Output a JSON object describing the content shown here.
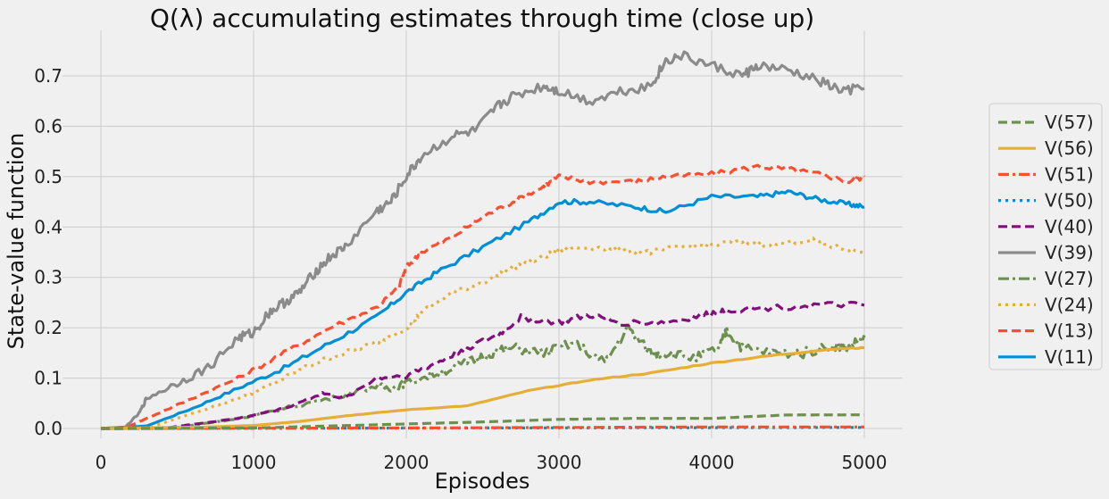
{
  "chart_data": {
    "type": "line",
    "title": "Q(λ) accumulating estimates through time (close up)",
    "xlabel": "Episodes",
    "ylabel": "State-value function",
    "xlim": [
      -250,
      5250
    ],
    "ylim": [
      -0.02,
      0.79
    ],
    "xticks": [
      0,
      1000,
      2000,
      3000,
      4000,
      5000
    ],
    "xtick_labels": [
      "0",
      "1000",
      "2000",
      "3000",
      "4000",
      "5000"
    ],
    "yticks": [
      0.0,
      0.1,
      0.2,
      0.3,
      0.4,
      0.5,
      0.6,
      0.7
    ],
    "ytick_labels": [
      "0.0",
      "0.1",
      "0.2",
      "0.3",
      "0.4",
      "0.5",
      "0.6",
      "0.7"
    ],
    "grid": true,
    "legend_position": "right",
    "series": [
      {
        "name": "V(57)",
        "label": "V(57)",
        "color": "#6d904f",
        "style": "dashed",
        "x": [
          0,
          1000,
          1500,
          2000,
          2500,
          3000,
          3500,
          4000,
          4500,
          5000
        ],
        "y": [
          0.0,
          0.001,
          0.005,
          0.009,
          0.013,
          0.018,
          0.02,
          0.02,
          0.027,
          0.027
        ]
      },
      {
        "name": "V(56)",
        "label": "V(56)",
        "color": "#e5ae38",
        "style": "solid",
        "x": [
          0,
          700,
          1000,
          1300,
          1600,
          2000,
          2400,
          2800,
          3200,
          3600,
          4000,
          4400,
          4800,
          5000
        ],
        "y": [
          0.0,
          0.003,
          0.006,
          0.014,
          0.025,
          0.037,
          0.045,
          0.075,
          0.096,
          0.11,
          0.13,
          0.145,
          0.158,
          0.16
        ]
      },
      {
        "name": "V(51)",
        "label": "V(51)",
        "color": "#fc4f30",
        "style": "dashdot",
        "x": [
          0,
          2000,
          3000,
          4000,
          5000
        ],
        "y": [
          0.0,
          0.001,
          0.002,
          0.003,
          0.003
        ]
      },
      {
        "name": "V(50)",
        "label": "V(50)",
        "color": "#008fd5",
        "style": "dotted",
        "x": [
          0,
          2500,
          5000
        ],
        "y": [
          0.0,
          0.001,
          0.002
        ]
      },
      {
        "name": "V(40)",
        "label": "V(40)",
        "color": "#810f7c",
        "style": "dashed",
        "x": [
          0,
          400,
          600,
          900,
          1200,
          1450,
          1600,
          1800,
          2000,
          2200,
          2400,
          2600,
          2750,
          3000,
          3200,
          3400,
          3700,
          3950,
          4100,
          4400,
          4700,
          5000
        ],
        "y": [
          0.0,
          0.0,
          0.008,
          0.02,
          0.04,
          0.07,
          0.06,
          0.1,
          0.105,
          0.13,
          0.16,
          0.185,
          0.22,
          0.21,
          0.225,
          0.21,
          0.21,
          0.225,
          0.235,
          0.24,
          0.245,
          0.245
        ]
      },
      {
        "name": "V(39)",
        "label": "V(39)",
        "color": "#8b8b8b",
        "style": "solid",
        "x": [
          0,
          150,
          250,
          300,
          500,
          700,
          900,
          1000,
          1100,
          1200,
          1300,
          1400,
          1500,
          1600,
          1800,
          1900,
          2000,
          2100,
          2300,
          2450,
          2600,
          2700,
          2900,
          3000,
          3200,
          3400,
          3600,
          3700,
          3800,
          4000,
          4200,
          4300,
          4500,
          4700,
          4850,
          5000
        ],
        "y": [
          0.0,
          0.0,
          0.03,
          0.06,
          0.09,
          0.12,
          0.18,
          0.19,
          0.23,
          0.25,
          0.27,
          0.31,
          0.34,
          0.36,
          0.43,
          0.45,
          0.5,
          0.54,
          0.58,
          0.59,
          0.64,
          0.66,
          0.68,
          0.67,
          0.65,
          0.67,
          0.68,
          0.73,
          0.74,
          0.72,
          0.7,
          0.72,
          0.71,
          0.69,
          0.67,
          0.675
        ]
      },
      {
        "name": "V(27)",
        "label": "V(27)",
        "color": "#6d904f",
        "style": "dashdot",
        "x": [
          0,
          500,
          800,
          1000,
          1200,
          1500,
          1800,
          1900,
          2000,
          2200,
          2400,
          2550,
          2700,
          2900,
          3100,
          3300,
          3450,
          3600,
          3700,
          3900,
          4050,
          4100,
          4200,
          4400,
          4600,
          4800,
          4900,
          5000
        ],
        "y": [
          0.0,
          0.002,
          0.015,
          0.025,
          0.04,
          0.06,
          0.085,
          0.08,
          0.09,
          0.11,
          0.13,
          0.15,
          0.16,
          0.15,
          0.17,
          0.13,
          0.2,
          0.15,
          0.15,
          0.14,
          0.16,
          0.195,
          0.16,
          0.15,
          0.15,
          0.165,
          0.16,
          0.185
        ]
      },
      {
        "name": "V(24)",
        "label": "V(24)",
        "color": "#e5ae38",
        "style": "dotted",
        "x": [
          0,
          300,
          500,
          800,
          1000,
          1200,
          1400,
          1600,
          1800,
          2000,
          2100,
          2300,
          2500,
          2700,
          2900,
          3000,
          3200,
          3400,
          3600,
          3800,
          4000,
          4200,
          4400,
          4650,
          4800,
          5000
        ],
        "y": [
          0.0,
          0.0,
          0.02,
          0.05,
          0.07,
          0.1,
          0.13,
          0.15,
          0.17,
          0.2,
          0.23,
          0.27,
          0.29,
          0.32,
          0.34,
          0.355,
          0.36,
          0.355,
          0.35,
          0.36,
          0.365,
          0.37,
          0.365,
          0.375,
          0.36,
          0.35
        ]
      },
      {
        "name": "V(13)",
        "label": "V(13)",
        "color": "#fc4f30",
        "style": "dashed",
        "x": [
          0,
          150,
          300,
          600,
          900,
          1200,
          1500,
          1800,
          1950,
          2000,
          2100,
          2300,
          2500,
          2700,
          2900,
          3000,
          3200,
          3500,
          3700,
          4000,
          4300,
          4500,
          4700,
          4900,
          5000
        ],
        "y": [
          0.0,
          0.0,
          0.02,
          0.06,
          0.1,
          0.15,
          0.2,
          0.24,
          0.28,
          0.32,
          0.35,
          0.38,
          0.42,
          0.45,
          0.48,
          0.5,
          0.49,
          0.49,
          0.5,
          0.505,
          0.52,
          0.515,
          0.505,
          0.49,
          0.5
        ]
      },
      {
        "name": "V(11)",
        "label": "V(11)",
        "color": "#008fd5",
        "style": "solid",
        "x": [
          0,
          300,
          600,
          900,
          1200,
          1500,
          1800,
          2000,
          2200,
          2500,
          2800,
          3000,
          3200,
          3500,
          3700,
          4000,
          4300,
          4500,
          4700,
          4900,
          5000
        ],
        "y": [
          0.0,
          0.005,
          0.04,
          0.08,
          0.12,
          0.17,
          0.22,
          0.27,
          0.31,
          0.36,
          0.41,
          0.45,
          0.45,
          0.44,
          0.43,
          0.46,
          0.46,
          0.47,
          0.455,
          0.445,
          0.44
        ]
      }
    ]
  }
}
